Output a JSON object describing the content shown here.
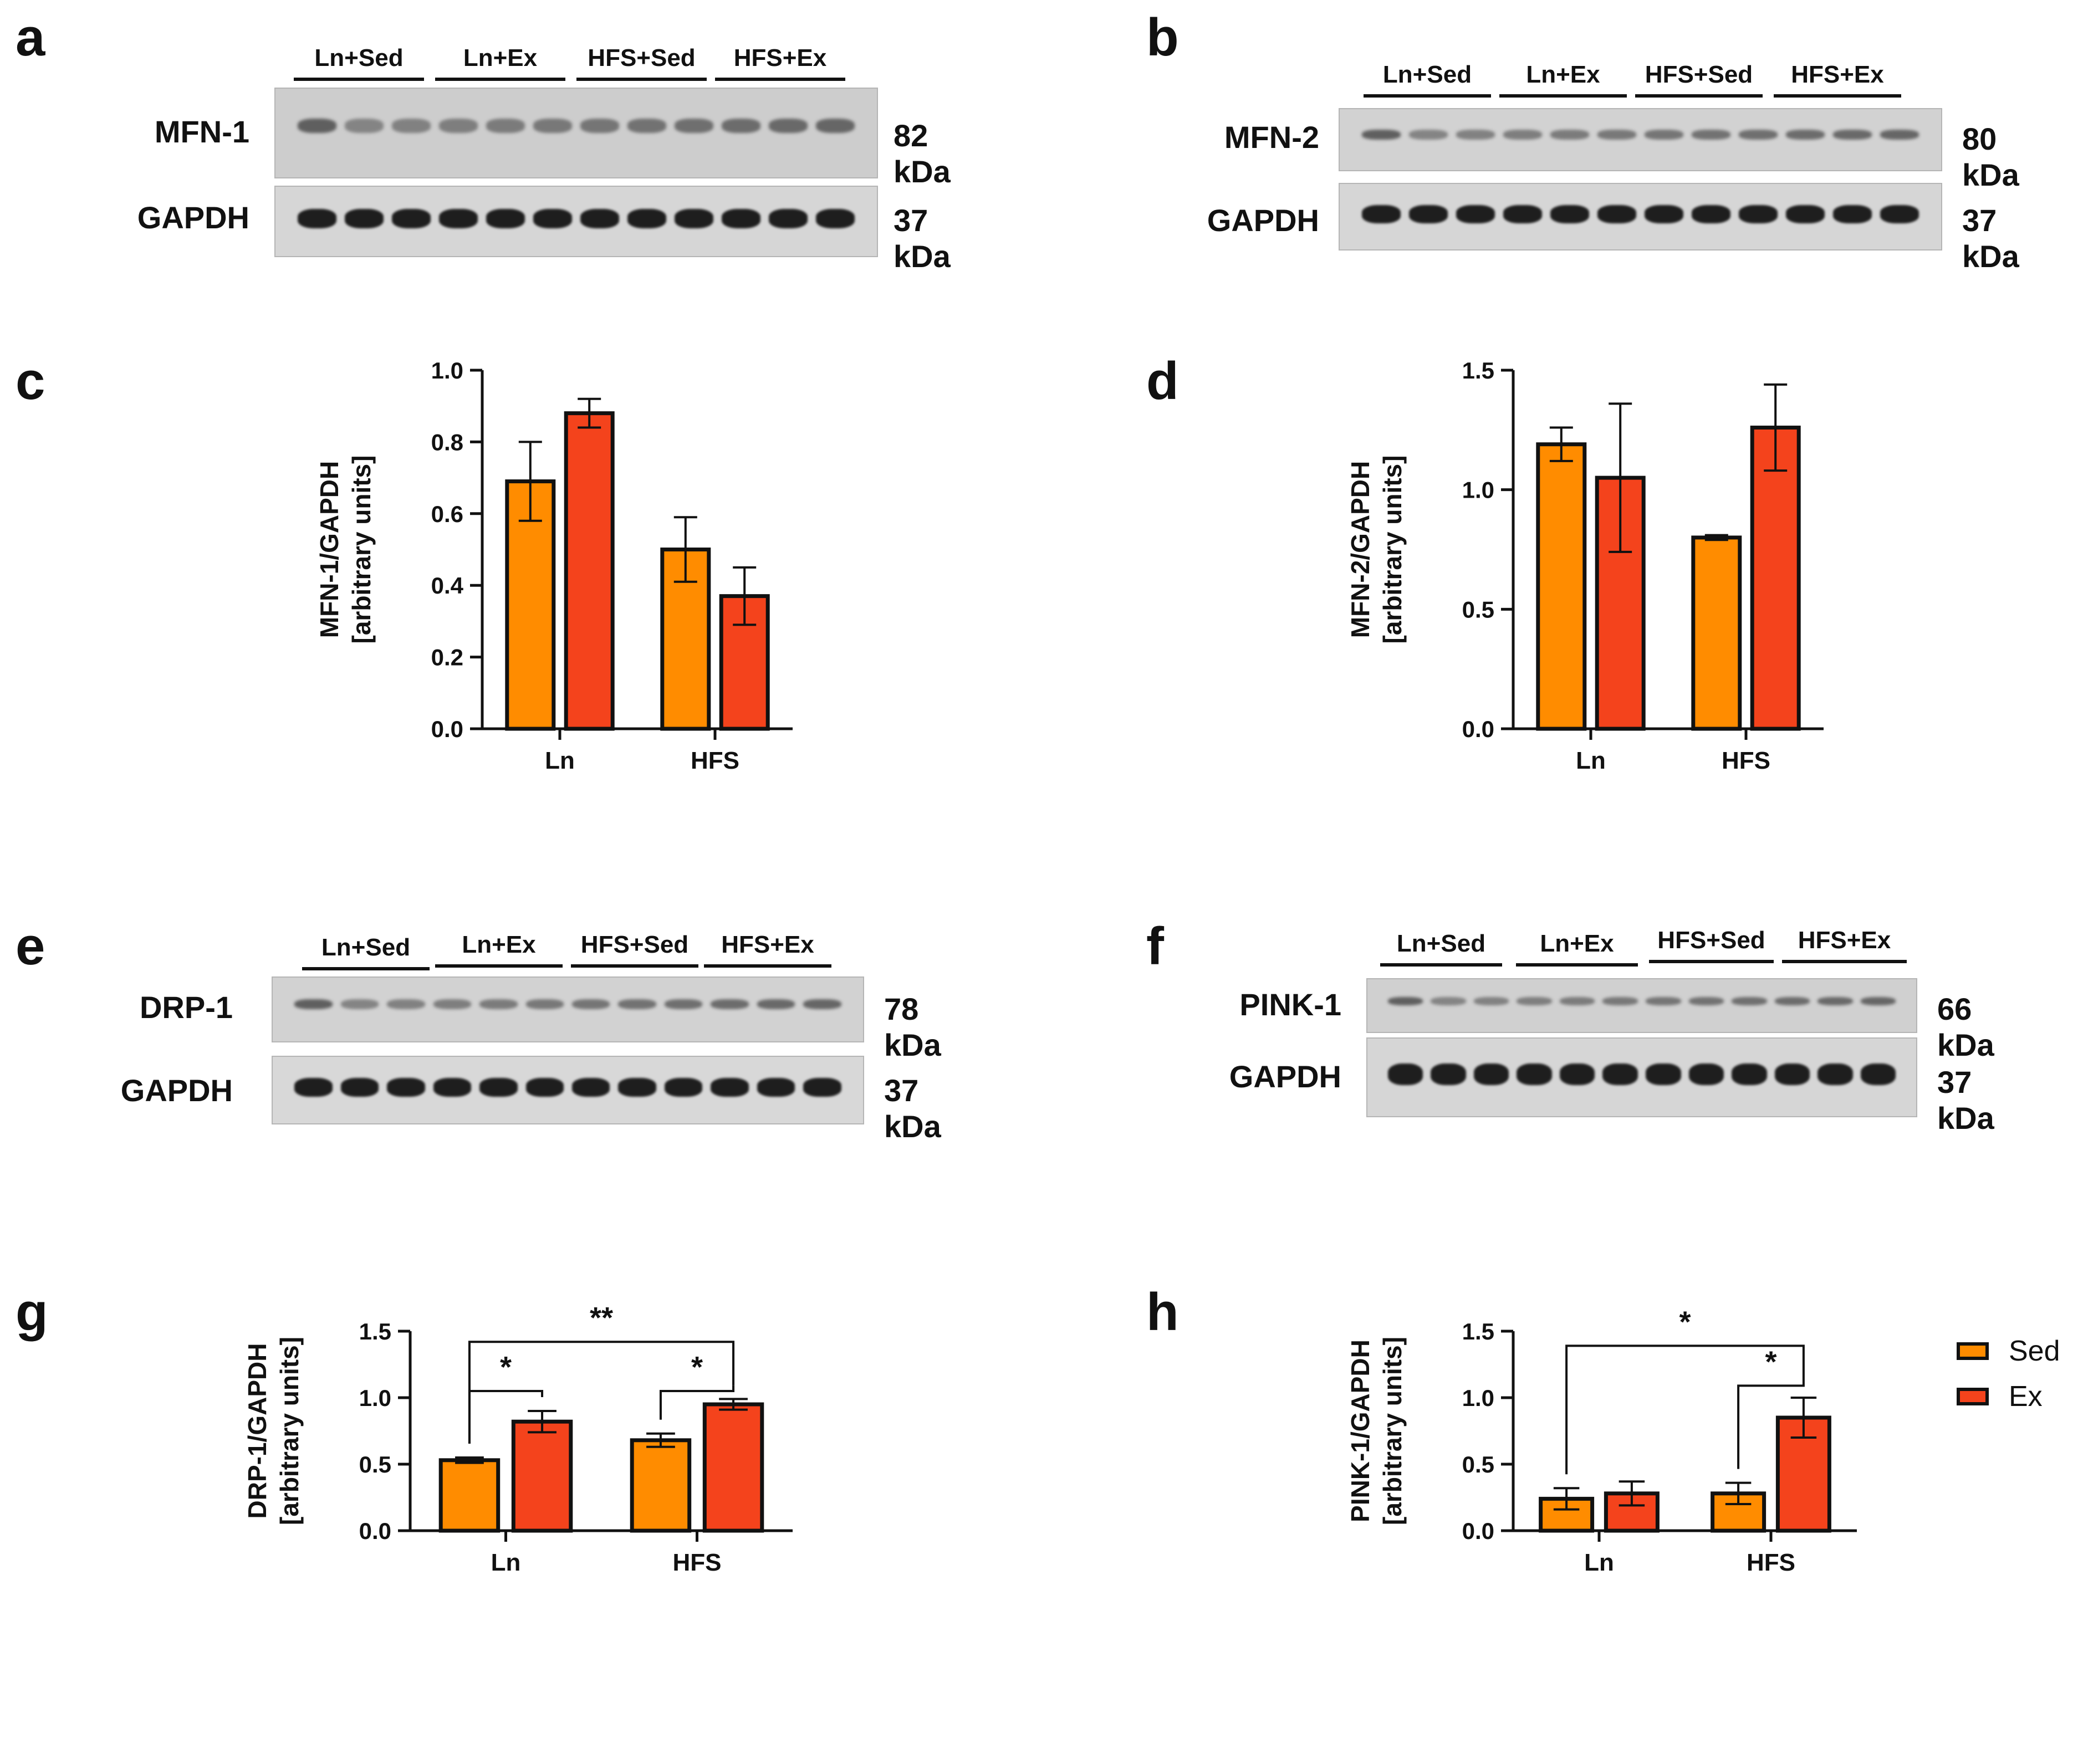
{
  "panels": {
    "a": "a",
    "b": "b",
    "c": "c",
    "d": "d",
    "e": "e",
    "f": "f",
    "g": "g",
    "h": "h"
  },
  "blots": [
    {
      "id": "a",
      "groups": [
        "Ln+Sed",
        "Ln+Ex",
        "HFS+Sed",
        "HFS+Ex"
      ],
      "protein": "MFN-1",
      "protein_kda": "82 kDa",
      "control": "GAPDH",
      "control_kda": "37 kDa"
    },
    {
      "id": "b",
      "groups": [
        "Ln+Sed",
        "Ln+Ex",
        "HFS+Sed",
        "HFS+Ex"
      ],
      "protein": "MFN-2",
      "protein_kda": "80 kDa",
      "control": "GAPDH",
      "control_kda": "37 kDa"
    },
    {
      "id": "e",
      "groups": [
        "Ln+Sed",
        "Ln+Ex",
        "HFS+Sed",
        "HFS+Ex"
      ],
      "protein": "DRP-1",
      "protein_kda": "78 kDa",
      "control": "GAPDH",
      "control_kda": "37 kDa"
    },
    {
      "id": "f",
      "groups": [
        "Ln+Sed",
        "Ln+Ex",
        "HFS+Sed",
        "HFS+Ex"
      ],
      "protein": "PINK-1",
      "protein_kda": "66 kDa",
      "control": "GAPDH",
      "control_kda": "37 kDa"
    }
  ],
  "colors": {
    "sed": "#FF8C00",
    "ex": "#F4431C",
    "axis": "#111111"
  },
  "legend": {
    "sed": "Sed",
    "ex": "Ex"
  },
  "chart_data": [
    {
      "id": "c",
      "type": "bar",
      "categories": [
        "Ln",
        "HFS"
      ],
      "ylabel_line1": "MFN-1/GAPDH",
      "ylabel_line2": "[arbitrary units]",
      "ylim": [
        0,
        1.0
      ],
      "yticks": [
        0.0,
        0.2,
        0.4,
        0.6,
        0.8,
        1.0
      ],
      "ytick_labels": [
        "0.0",
        "0.2",
        "0.4",
        "0.6",
        "0.8",
        "1.0"
      ],
      "series": [
        {
          "name": "Sed",
          "values": [
            0.69,
            0.5
          ],
          "errors": [
            0.11,
            0.09
          ]
        },
        {
          "name": "Ex",
          "values": [
            0.88,
            0.37
          ],
          "errors": [
            0.04,
            0.08
          ]
        }
      ],
      "significance": []
    },
    {
      "id": "d",
      "type": "bar",
      "categories": [
        "Ln",
        "HFS"
      ],
      "ylabel_line1": "MFN-2/GAPDH",
      "ylabel_line2": "[arbitrary units]",
      "ylim": [
        0,
        1.5
      ],
      "yticks": [
        0.0,
        0.5,
        1.0,
        1.5
      ],
      "ytick_labels": [
        "0.0",
        "0.5",
        "1.0",
        "1.5"
      ],
      "series": [
        {
          "name": "Sed",
          "values": [
            1.19,
            0.8
          ],
          "errors": [
            0.07,
            0.01
          ]
        },
        {
          "name": "Ex",
          "values": [
            1.05,
            1.26
          ],
          "errors": [
            0.31,
            0.18
          ]
        }
      ],
      "significance": []
    },
    {
      "id": "g",
      "type": "bar",
      "categories": [
        "Ln",
        "HFS"
      ],
      "ylabel_line1": "DRP-1/GAPDH",
      "ylabel_line2": "[arbitrary units]",
      "ylim": [
        0,
        1.5
      ],
      "yticks": [
        0.0,
        0.5,
        1.0,
        1.5
      ],
      "ytick_labels": [
        "0.0",
        "0.5",
        "1.0",
        "1.5"
      ],
      "series": [
        {
          "name": "Sed",
          "values": [
            0.53,
            0.68
          ],
          "errors": [
            0.02,
            0.05
          ]
        },
        {
          "name": "Ex",
          "values": [
            0.82,
            0.95
          ],
          "errors": [
            0.08,
            0.04
          ]
        }
      ],
      "significance": [
        {
          "from": [
            0,
            0
          ],
          "to": [
            0,
            1
          ],
          "level": 1.05,
          "label": "*"
        },
        {
          "from": [
            1,
            0
          ],
          "to": [
            1,
            1
          ],
          "level": 1.05,
          "label": "*"
        },
        {
          "from": [
            0,
            0
          ],
          "to": [
            1,
            1
          ],
          "level": 1.42,
          "label": "**"
        }
      ]
    },
    {
      "id": "h",
      "type": "bar",
      "categories": [
        "Ln",
        "HFS"
      ],
      "ylabel_line1": "PINK-1/GAPDH",
      "ylabel_line2": "[arbitrary units]",
      "ylim": [
        0,
        1.5
      ],
      "yticks": [
        0.0,
        0.5,
        1.0,
        1.5
      ],
      "ytick_labels": [
        "0.0",
        "0.5",
        "1.0",
        "1.5"
      ],
      "series": [
        {
          "name": "Sed",
          "values": [
            0.24,
            0.28
          ],
          "errors": [
            0.08,
            0.08
          ]
        },
        {
          "name": "Ex",
          "values": [
            0.28,
            0.85
          ],
          "errors": [
            0.09,
            0.15
          ]
        }
      ],
      "significance": [
        {
          "from": [
            1,
            1
          ],
          "to": [
            1,
            0
          ],
          "level": 1.09,
          "label": "*"
        },
        {
          "from": [
            0,
            0
          ],
          "to": [
            1,
            1
          ],
          "level": 1.39,
          "label": "*"
        }
      ]
    }
  ]
}
